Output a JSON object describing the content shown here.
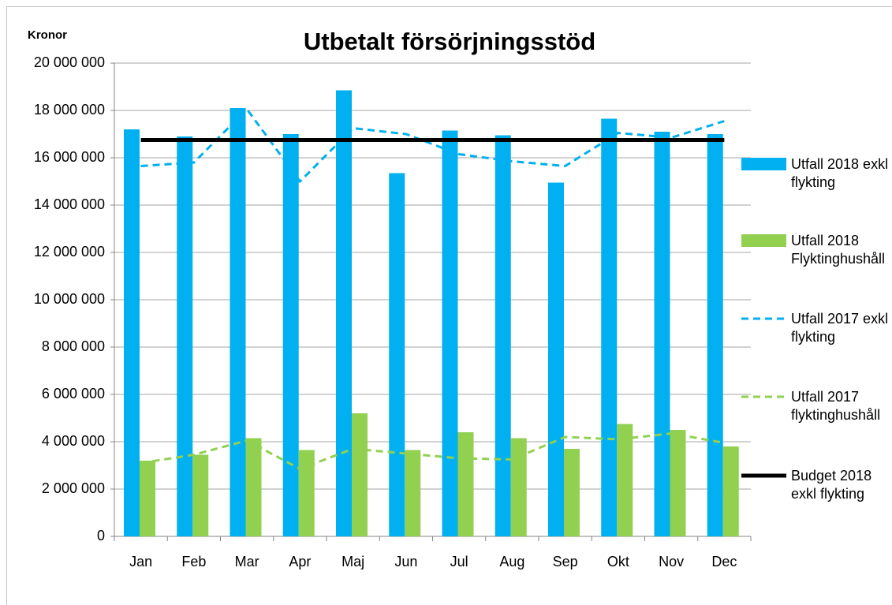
{
  "chart_data": {
    "type": "bar",
    "title": "Utbetalt försörjningsstöd",
    "y_label": "Kronor",
    "categories": [
      "Jan",
      "Feb",
      "Mar",
      "Apr",
      "Maj",
      "Jun",
      "Jul",
      "Aug",
      "Sep",
      "Okt",
      "Nov",
      "Dec"
    ],
    "series": [
      {
        "name": "Utfall 2018 exkl flykting",
        "kind": "bar",
        "color": "#00b0f0",
        "values": [
          17200000,
          16900000,
          18100000,
          17000000,
          18850000,
          15350000,
          17150000,
          16950000,
          14950000,
          17650000,
          17100000,
          17000000
        ]
      },
      {
        "name": "Utfall 2018 Flyktinghushåll",
        "kind": "bar",
        "color": "#92d050",
        "values": [
          3200000,
          3450000,
          4150000,
          3650000,
          5200000,
          3650000,
          4400000,
          4150000,
          3700000,
          4750000,
          4500000,
          3800000
        ]
      },
      {
        "name": "Utfall 2017 exkl flykting",
        "kind": "line",
        "dashed": true,
        "color": "#00b0f0",
        "values": [
          15650000,
          15800000,
          18050000,
          15000000,
          17250000,
          17000000,
          16150000,
          15850000,
          15650000,
          17050000,
          16850000,
          17550000
        ]
      },
      {
        "name": "Utfall 2017 flyktinghushåll",
        "kind": "line",
        "dashed": true,
        "color": "#92d050",
        "values": [
          3100000,
          3450000,
          4050000,
          2850000,
          3700000,
          3500000,
          3300000,
          3250000,
          4200000,
          4100000,
          4350000,
          3950000
        ]
      },
      {
        "name": "Budget 2018 exkl flykting",
        "kind": "line",
        "dashed": false,
        "color": "#000000",
        "values": [
          16750000,
          16750000,
          16750000,
          16750000,
          16750000,
          16750000,
          16750000,
          16750000,
          16750000,
          16750000,
          16750000,
          16750000
        ]
      }
    ],
    "ylim": [
      0,
      20000000
    ],
    "yticks": [
      0,
      {
        "value": 2000000,
        "label": "2 000 000"
      },
      {
        "value": 4000000,
        "label": "4 000 000"
      },
      {
        "value": 6000000,
        "label": "6 000 000"
      },
      {
        "value": 8000000,
        "label": "8 000 000"
      },
      {
        "value": 10000000,
        "label": "10 000 000"
      },
      {
        "value": 12000000,
        "label": "12 000 000"
      },
      {
        "value": 14000000,
        "label": "14 000 000"
      },
      {
        "value": 16000000,
        "label": "16 000 000"
      },
      {
        "value": 18000000,
        "label": "18 000 000"
      },
      {
        "value": 20000000,
        "label": "20 000 000"
      }
    ],
    "grid": true,
    "legend": "right"
  }
}
